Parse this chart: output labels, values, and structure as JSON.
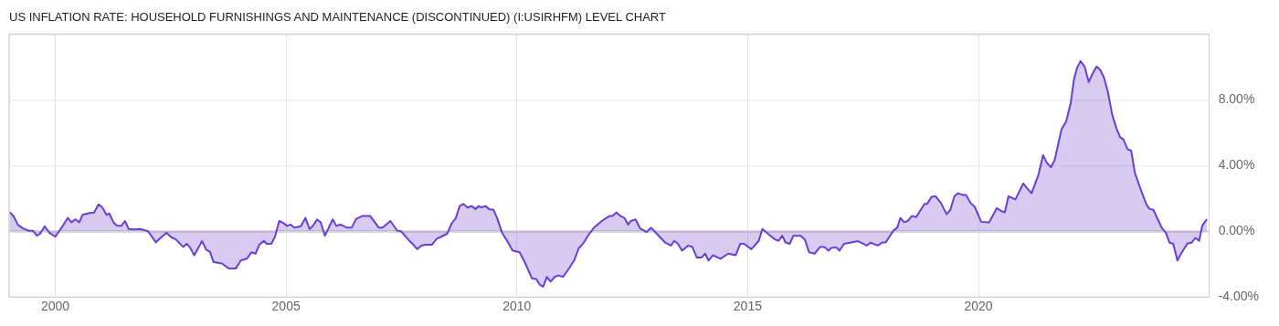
{
  "chart_data": {
    "type": "area",
    "title": "US INFLATION RATE: HOUSEHOLD FURNISHINGS AND MAINTENANCE (DISCONTINUED) (I:USIRHFM) LEVEL CHART",
    "x": [
      1999.01,
      1999.1,
      1999.19,
      1999.3,
      1999.43,
      1999.52,
      1999.6,
      1999.67,
      1999.77,
      1999.87,
      2000.0,
      2000.17,
      2000.27,
      2000.35,
      2000.44,
      2000.52,
      2000.59,
      2000.74,
      2000.84,
      2000.94,
      2001.02,
      2001.11,
      2001.17,
      2001.26,
      2001.34,
      2001.43,
      2001.51,
      2001.59,
      2001.71,
      2001.84,
      2002.01,
      2002.18,
      2002.31,
      2002.41,
      2002.51,
      2002.61,
      2002.77,
      2002.85,
      2002.91,
      2003.01,
      2003.18,
      2003.27,
      2003.35,
      2003.43,
      2003.61,
      2003.76,
      2003.91,
      2004.02,
      2004.15,
      2004.25,
      2004.34,
      2004.42,
      2004.52,
      2004.58,
      2004.68,
      2004.76,
      2004.85,
      2004.94,
      2005.02,
      2005.1,
      2005.18,
      2005.32,
      2005.42,
      2005.51,
      2005.59,
      2005.67,
      2005.75,
      2005.84,
      2006.01,
      2006.09,
      2006.18,
      2006.32,
      2006.42,
      2006.52,
      2006.66,
      2006.82,
      2007.01,
      2007.09,
      2007.26,
      2007.41,
      2007.49,
      2007.66,
      2007.76,
      2007.84,
      2007.93,
      2008.03,
      2008.16,
      2008.26,
      2008.36,
      2008.49,
      2008.59,
      2008.68,
      2008.76,
      2008.84,
      2008.93,
      2009.02,
      2009.1,
      2009.18,
      2009.23,
      2009.32,
      2009.41,
      2009.49,
      2009.57,
      2009.68,
      2009.8,
      2009.91,
      2010.06,
      2010.16,
      2010.33,
      2010.42,
      2010.5,
      2010.57,
      2010.65,
      2010.73,
      2010.82,
      2010.9,
      2011.0,
      2011.14,
      2011.24,
      2011.34,
      2011.44,
      2011.54,
      2011.67,
      2011.84,
      2012.01,
      2012.07,
      2012.16,
      2012.24,
      2012.33,
      2012.41,
      2012.47,
      2012.57,
      2012.67,
      2012.81,
      2012.91,
      2013.04,
      2013.21,
      2013.34,
      2013.41,
      2013.48,
      2013.58,
      2013.71,
      2013.8,
      2013.9,
      2014.0,
      2014.08,
      2014.15,
      2014.25,
      2014.41,
      2014.58,
      2014.74,
      2014.84,
      2014.92,
      2015.08,
      2015.24,
      2015.32,
      2015.45,
      2015.59,
      2015.67,
      2015.75,
      2015.82,
      2015.91,
      2015.99,
      2016.15,
      2016.24,
      2016.33,
      2016.45,
      2016.57,
      2016.66,
      2016.75,
      2016.82,
      2016.93,
      2016.99,
      2017.09,
      2017.22,
      2017.39,
      2017.58,
      2017.66,
      2017.82,
      2017.92,
      2017.99,
      2018.16,
      2018.24,
      2018.31,
      2018.39,
      2018.47,
      2018.56,
      2018.65,
      2018.83,
      2018.89,
      2018.98,
      2019.07,
      2019.19,
      2019.31,
      2019.39,
      2019.48,
      2019.56,
      2019.65,
      2019.73,
      2019.83,
      2019.92,
      2020.06,
      2020.23,
      2020.4,
      2020.47,
      2020.57,
      2020.65,
      2020.8,
      2020.97,
      2021.05,
      2021.15,
      2021.3,
      2021.4,
      2021.48,
      2021.57,
      2021.65,
      2021.8,
      2021.9,
      2022.0,
      2022.07,
      2022.13,
      2022.21,
      2022.3,
      2022.39,
      2022.47,
      2022.56,
      2022.64,
      2022.72,
      2022.8,
      2022.9,
      2022.99,
      2023.07,
      2023.14,
      2023.23,
      2023.31,
      2023.39,
      2023.54,
      2023.64,
      2023.71,
      2023.79,
      2023.97,
      2024.06,
      2024.14,
      2024.22,
      2024.31,
      2024.39,
      2024.53,
      2024.62,
      2024.7,
      2024.78,
      2024.85,
      2024.95
    ],
    "series": [
      {
        "color": "#6a3fcf",
        "values": [
          1.18,
          0.91,
          0.4,
          0.18,
          0.03,
          0.03,
          -0.27,
          -0.15,
          0.31,
          -0.09,
          -0.33,
          0.36,
          0.82,
          0.55,
          0.73,
          0.55,
          1.0,
          1.12,
          1.14,
          1.64,
          1.45,
          1.0,
          1.09,
          0.55,
          0.33,
          0.33,
          0.63,
          0.14,
          0.12,
          0.14,
          0.0,
          -0.67,
          -0.33,
          -0.09,
          -0.36,
          -0.49,
          -0.95,
          -0.76,
          -0.95,
          -1.46,
          -0.6,
          -1.13,
          -1.24,
          -1.88,
          -1.96,
          -2.27,
          -2.27,
          -1.78,
          -1.67,
          -1.28,
          -1.36,
          -0.82,
          -0.58,
          -0.76,
          -0.76,
          -0.33,
          0.63,
          0.51,
          0.33,
          0.41,
          0.22,
          0.31,
          0.82,
          0.14,
          0.36,
          0.73,
          0.55,
          -0.27,
          0.73,
          0.33,
          0.41,
          0.22,
          0.22,
          0.76,
          0.94,
          0.94,
          0.22,
          0.22,
          0.63,
          0.03,
          0.0,
          -0.55,
          -0.82,
          -1.09,
          -0.87,
          -0.82,
          -0.82,
          -0.46,
          -0.33,
          -0.15,
          0.49,
          0.82,
          1.54,
          1.67,
          1.45,
          1.54,
          1.36,
          1.54,
          1.45,
          1.54,
          1.33,
          1.33,
          0.82,
          -0.09,
          -0.64,
          -1.18,
          -1.28,
          -1.82,
          -2.88,
          -2.91,
          -3.27,
          -3.37,
          -2.78,
          -3.06,
          -2.78,
          -2.69,
          -2.78,
          -2.22,
          -1.78,
          -1.04,
          -0.73,
          -0.27,
          0.22,
          0.63,
          0.94,
          0.94,
          1.15,
          0.94,
          0.82,
          0.41,
          0.63,
          0.73,
          0.18,
          -0.05,
          0.22,
          -0.18,
          -0.68,
          -0.87,
          -0.58,
          -0.73,
          -1.18,
          -0.87,
          -0.95,
          -1.6,
          -1.6,
          -1.36,
          -1.78,
          -1.46,
          -1.67,
          -1.36,
          -1.46,
          -0.76,
          -0.76,
          -1.09,
          -0.58,
          0.14,
          -0.18,
          -0.49,
          -0.58,
          -0.27,
          -0.68,
          -0.76,
          -0.27,
          -0.27,
          -0.51,
          -1.28,
          -1.36,
          -0.95,
          -0.95,
          -1.18,
          -1.0,
          -1.0,
          -1.18,
          -0.76,
          -0.69,
          -0.6,
          -0.87,
          -0.69,
          -0.87,
          -0.68,
          -0.68,
          0.05,
          0.22,
          0.82,
          0.55,
          0.63,
          0.94,
          0.87,
          1.67,
          1.67,
          2.09,
          2.14,
          1.72,
          1.04,
          1.31,
          2.14,
          2.32,
          2.22,
          2.22,
          1.72,
          1.49,
          0.58,
          0.55,
          1.42,
          1.27,
          1.15,
          2.13,
          1.94,
          2.91,
          2.64,
          2.32,
          3.45,
          4.64,
          4.18,
          3.91,
          4.33,
          6.22,
          6.69,
          7.82,
          9.27,
          9.91,
          10.37,
          10.04,
          9.09,
          9.6,
          10.04,
          9.82,
          9.36,
          8.54,
          7.09,
          6.27,
          5.73,
          5.6,
          5.0,
          4.91,
          3.55,
          2.36,
          1.64,
          1.36,
          1.31,
          0.22,
          -0.09,
          -0.69,
          -0.76,
          -1.78,
          -1.36,
          -0.73,
          -0.69,
          -0.4,
          -0.58,
          0.36,
          0.73
        ]
      }
    ],
    "xlim": [
      1999,
      2025
    ],
    "xticks": [
      2000,
      2005,
      2010,
      2015,
      2020
    ],
    "ylim": [
      -4,
      12
    ],
    "yticks": [
      {
        "value": -4,
        "label": "-4.00%"
      },
      {
        "value": 0,
        "label": "0.00%"
      },
      {
        "value": 4,
        "label": "4.00%"
      },
      {
        "value": 8,
        "label": "8.00%"
      }
    ],
    "grid": true,
    "legend": false,
    "marker": "none"
  }
}
